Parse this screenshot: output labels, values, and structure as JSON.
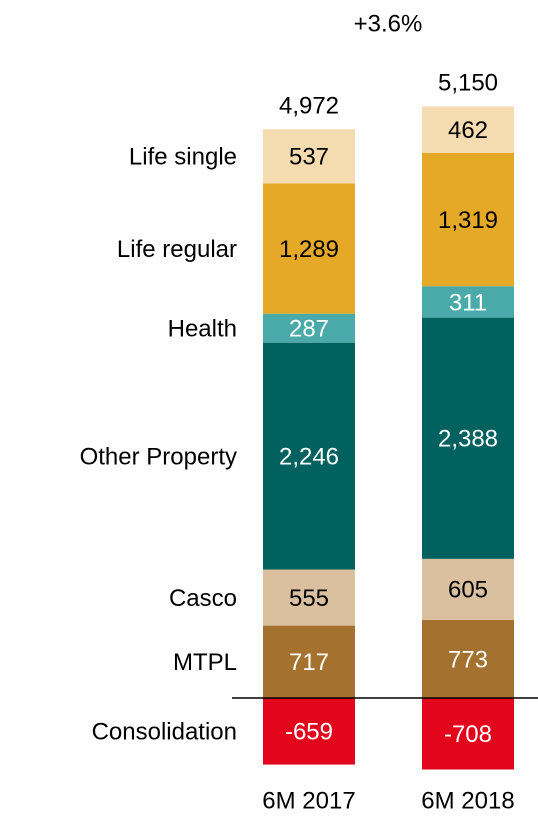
{
  "chart_data": {
    "type": "stacked-bar",
    "annotation": "+3.6%",
    "categories": [
      "6M 2017",
      "6M 2018"
    ],
    "series": [
      {
        "name": "MTPL",
        "color": "#a5712e",
        "label_color": "#ffffff",
        "values": [
          717,
          773
        ]
      },
      {
        "name": "Casco",
        "color": "#dbc0a0",
        "label_color": "#000000",
        "values": [
          555,
          605
        ]
      },
      {
        "name": "Other Property",
        "color": "#00615f",
        "label_color": "#ffffff",
        "values": [
          2246,
          2388
        ],
        "value_labels": [
          "2,246",
          "2,388"
        ]
      },
      {
        "name": "Health",
        "color": "#4aa9a9",
        "label_color": "#ffffff",
        "values": [
          287,
          311
        ]
      },
      {
        "name": "Life regular",
        "color": "#e5a927",
        "label_color": "#000000",
        "values": [
          1289,
          1319
        ],
        "value_labels": [
          "1,289",
          "1,319"
        ]
      },
      {
        "name": "Life single",
        "color": "#f5dcb0",
        "label_color": "#000000",
        "values": [
          537,
          462
        ]
      },
      {
        "name": "Consolidation",
        "color": "#e3051b",
        "label_color": "#ffffff",
        "values": [
          -659,
          -708
        ]
      }
    ],
    "totals": {
      "values": [
        4972,
        5150
      ],
      "value_labels": [
        "4,972",
        "5,150"
      ]
    }
  }
}
